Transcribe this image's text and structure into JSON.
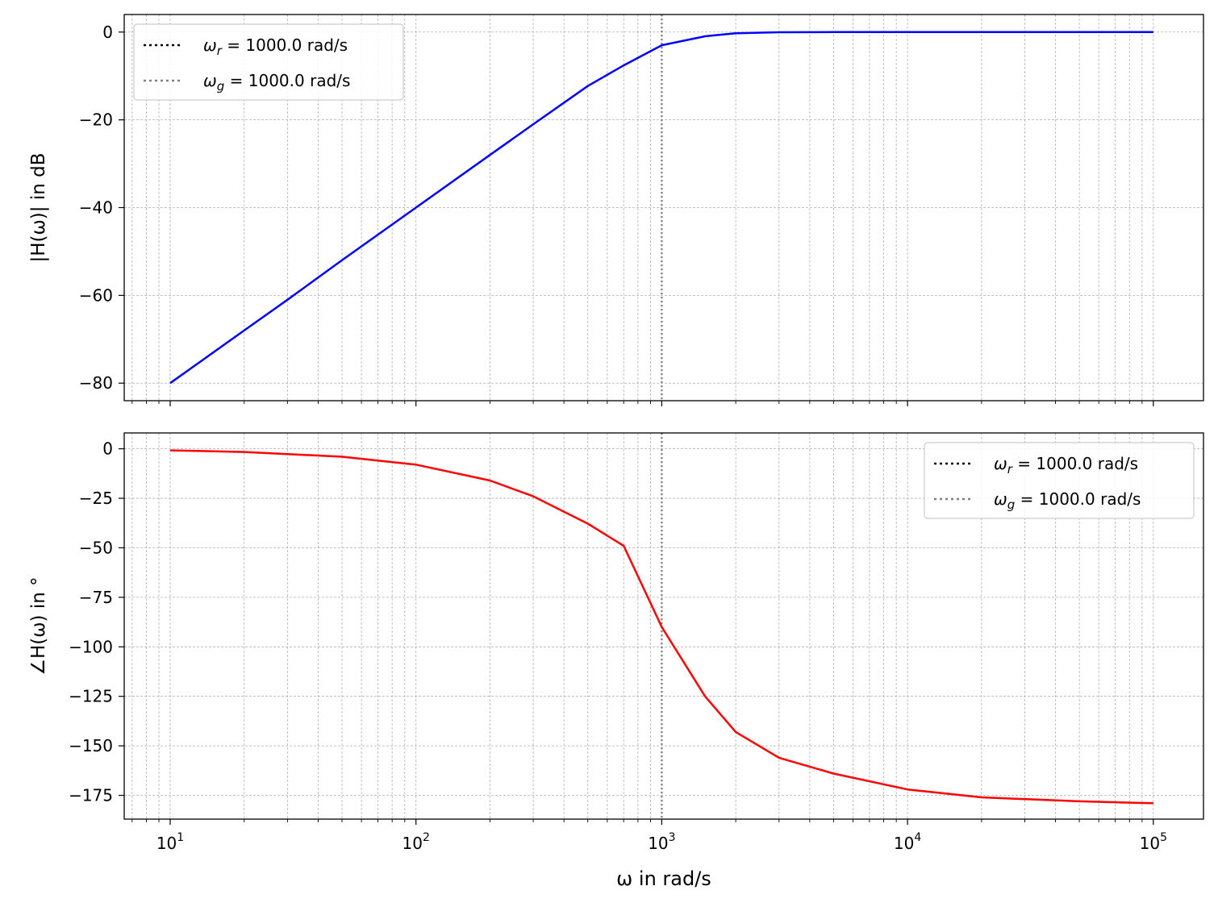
{
  "chart_data": [
    {
      "type": "line",
      "xscale": "log",
      "xlim": [
        6.5,
        160000
      ],
      "ylim": [
        -84,
        4
      ],
      "xticks": [
        10,
        100,
        1000,
        10000,
        100000
      ],
      "yticks": [
        0,
        -20,
        -40,
        -60,
        -80
      ],
      "ytick_labels": [
        "0",
        "−20",
        "−40",
        "−60",
        "−80"
      ],
      "ylabel": "|H(ω)| in dB",
      "xlabel": "",
      "grid": true,
      "legend_position": "top-left",
      "series": [
        {
          "color": "#0000ff",
          "points": [
            [
              10,
              -80
            ],
            [
              20,
              -68
            ],
            [
              30,
              -61
            ],
            [
              50,
              -52
            ],
            [
              100,
              -40
            ],
            [
              200,
              -28
            ],
            [
              300,
              -21
            ],
            [
              500,
              -12.3
            ],
            [
              700,
              -7.6
            ],
            [
              1000,
              -3
            ],
            [
              1500,
              -0.96
            ],
            [
              2000,
              -0.26
            ],
            [
              3000,
              -0.05
            ],
            [
              5000,
              -0.01
            ],
            [
              10000,
              0
            ],
            [
              100000,
              0
            ]
          ]
        }
      ],
      "vlines": [
        {
          "x": 1000,
          "color": "#000000",
          "label": "ω_r = 1000.0 rad/s"
        },
        {
          "x": 1000,
          "color": "#808080",
          "label": "ω_g = 1000.0 rad/s"
        }
      ]
    },
    {
      "type": "line",
      "xscale": "log",
      "xlim": [
        6.5,
        160000
      ],
      "ylim": [
        -187,
        8
      ],
      "xticks": [
        10,
        100,
        1000,
        10000,
        100000
      ],
      "xtick_labels": [
        "10^1",
        "10^2",
        "10^3",
        "10^4",
        "10^5"
      ],
      "yticks": [
        0,
        -25,
        -50,
        -75,
        -100,
        -125,
        -150,
        -175
      ],
      "ytick_labels": [
        "0",
        "−25",
        "−50",
        "−75",
        "−100",
        "−125",
        "−150",
        "−175"
      ],
      "ylabel": "∠H(ω) in °",
      "xlabel": "ω in rad/s",
      "grid": true,
      "legend_position": "top-right",
      "series": [
        {
          "color": "#ff0000",
          "points": [
            [
              10,
              -0.8
            ],
            [
              20,
              -1.6
            ],
            [
              50,
              -4
            ],
            [
              100,
              -8
            ],
            [
              200,
              -16
            ],
            [
              300,
              -24
            ],
            [
              500,
              -37.8
            ],
            [
              700,
              -49
            ],
            [
              1000,
              -90
            ],
            [
              1500,
              -125
            ],
            [
              2000,
              -143
            ],
            [
              3000,
              -156
            ],
            [
              5000,
              -164
            ],
            [
              10000,
              -172
            ],
            [
              20000,
              -176
            ],
            [
              50000,
              -178
            ],
            [
              100000,
              -179
            ]
          ]
        }
      ],
      "vlines": [
        {
          "x": 1000,
          "color": "#000000",
          "label": "ω_r = 1000.0 rad/s"
        },
        {
          "x": 1000,
          "color": "#808080",
          "label": "ω_g = 1000.0 rad/s"
        }
      ]
    }
  ]
}
